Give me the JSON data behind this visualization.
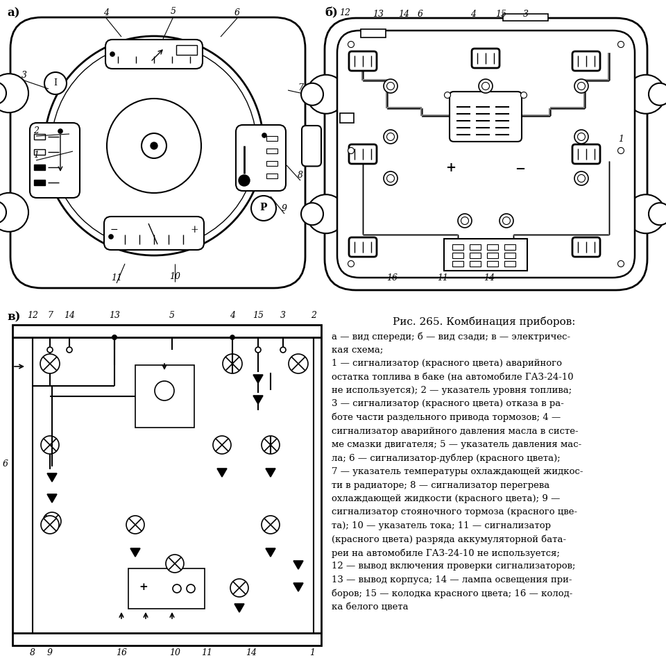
{
  "bg": "#ffffff",
  "fg": "#000000",
  "title": "Рис. 265. Комбинация приборов:",
  "desc": [
    "а — вид спереди; б — вид сзади; в — электричес-",
    "кая схема;",
    "1 — сигнализатор (красного цвета) аварийного",
    "остатка топлива в баке (на автомобиле ГАЗ-24-10",
    "не используется); 2 — указатель уровня топлива;",
    "3 — сигнализатор (красного цвета) отказа в ра-",
    "боте части раздельного привода тормозов; 4 —",
    "сигнализатор аварийного давления масла в систе-",
    "ме смазки двигателя; 5 — указатель давления мас-",
    "ла; 6 — сигнализатор-дублер (красного цвета);",
    "7 — указатель температуры охлаждающей жидкос-",
    "ти в радиаторе; 8 — сигнализатор перегрева",
    "охлаждающей жидкости (красного цвета); 9 —",
    "сигнализатор стояночного тормоза (красного цве-",
    "та); 10 — указатель тока; 11 — сигнализатор",
    "(красного цвета) разряда аккумуляторной бата-",
    "реи на автомобиле ГАЗ-24-10 не используется;",
    "12 — вывод включения проверки сигнализаторов;",
    "13 — вывод корпуса; 14 — лампа освещения при-",
    "боров; 15 — колодка красного цвета; 16 — колод-",
    "ка белого цвета"
  ]
}
